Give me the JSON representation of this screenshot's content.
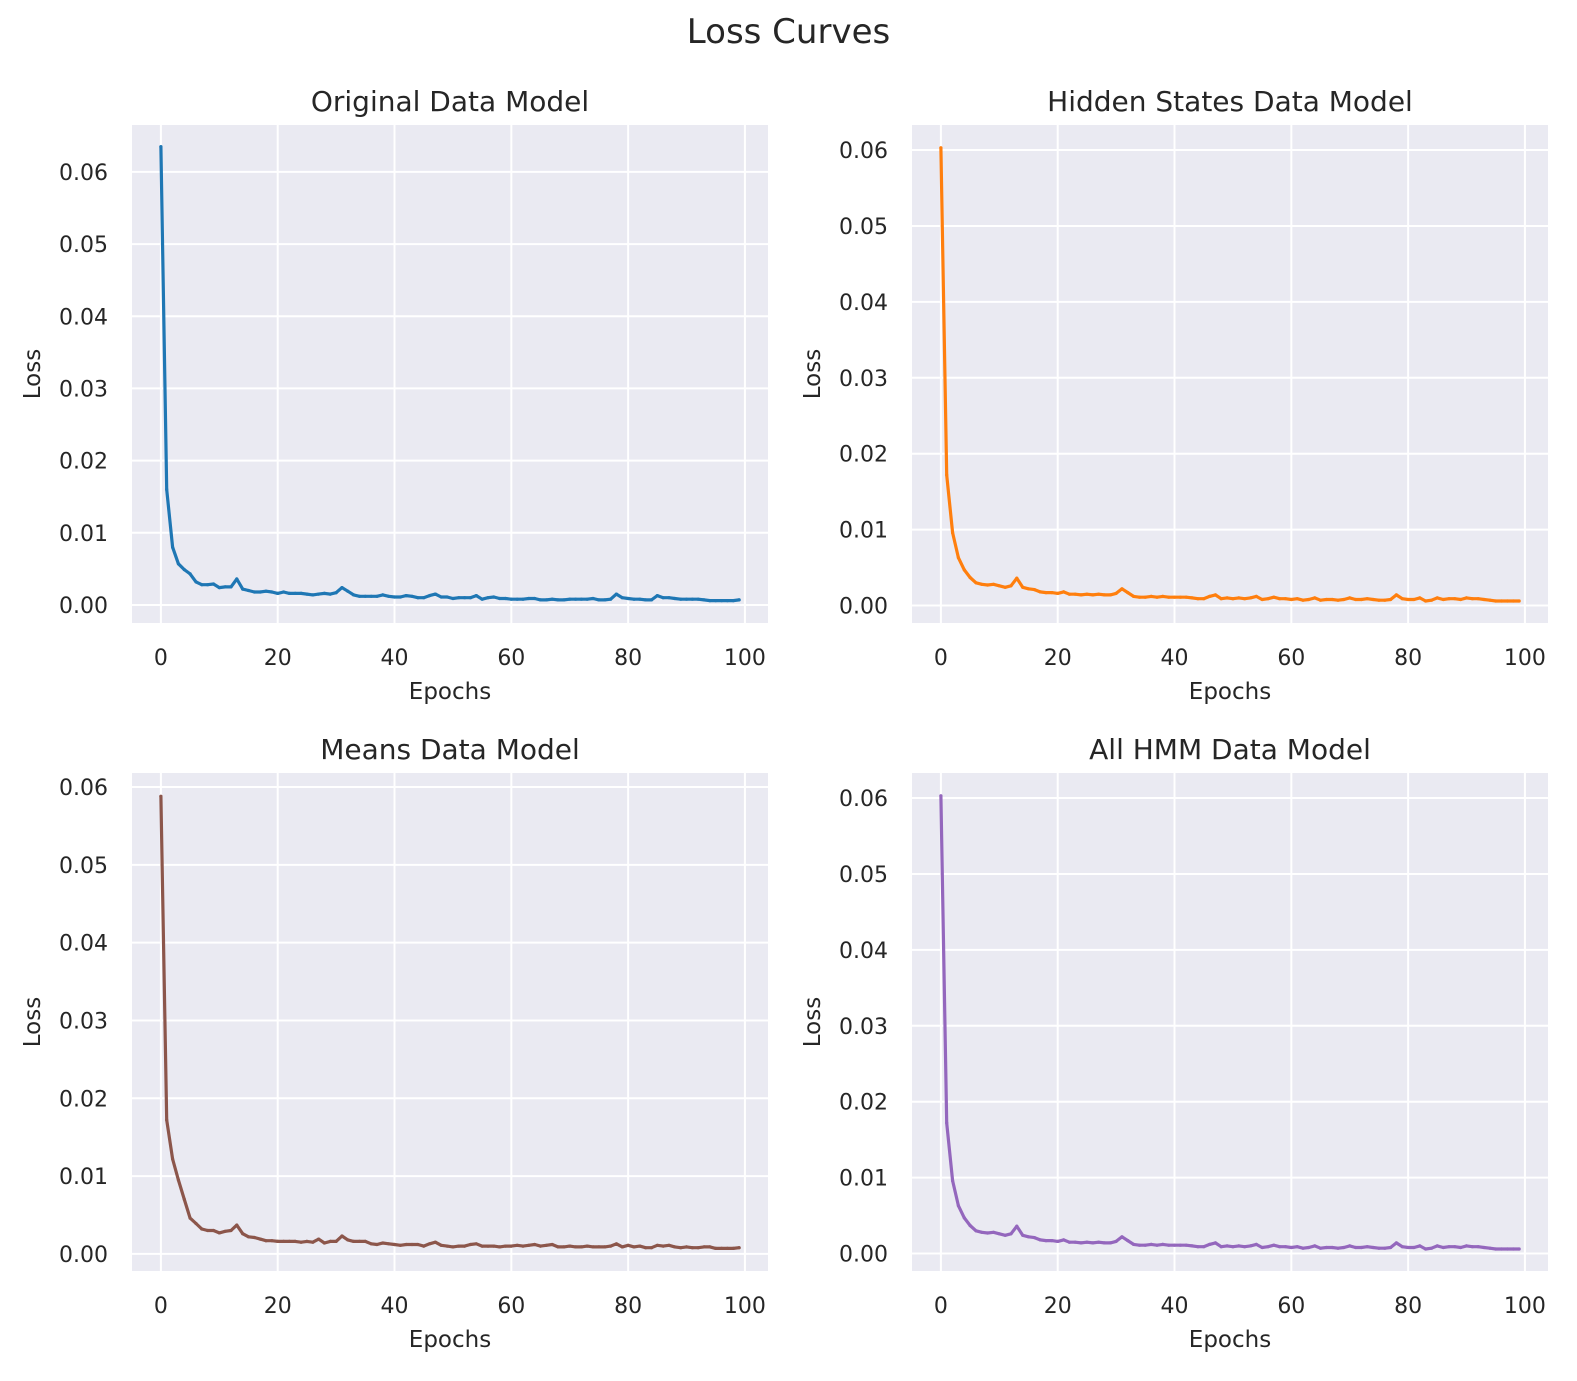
{
  "figure": {
    "title": "Loss Curves"
  },
  "colors": {
    "axes_bg": "#eaeaf2",
    "grid": "#ffffff",
    "text": "#262626",
    "series": [
      "#1f77b4",
      "#ff7f0e",
      "#8c564b",
      "#9467bd"
    ]
  },
  "chart_data": [
    {
      "type": "line",
      "title": "Original Data Model",
      "xlabel": "Epochs",
      "ylabel": "Loss",
      "xlim": [
        -4.95,
        103.95
      ],
      "ylim": [
        -0.0025,
        0.0665
      ],
      "xticks": [
        0,
        20,
        40,
        60,
        80,
        100
      ],
      "xtick_labels": [
        "0",
        "20",
        "40",
        "60",
        "80",
        "100"
      ],
      "yticks": [
        0.0,
        0.01,
        0.02,
        0.03,
        0.04,
        0.05,
        0.06
      ],
      "ytick_labels": [
        "0.00",
        "0.01",
        "0.02",
        "0.03",
        "0.04",
        "0.05",
        "0.06"
      ],
      "grid": true,
      "color": "#1f77b4",
      "x": [
        0,
        1,
        2,
        3,
        4,
        5,
        6,
        7,
        8,
        9,
        10,
        11,
        12,
        13,
        14,
        15,
        16,
        17,
        18,
        19,
        20,
        21,
        22,
        23,
        24,
        25,
        26,
        27,
        28,
        29,
        30,
        31,
        32,
        33,
        34,
        35,
        36,
        37,
        38,
        39,
        40,
        41,
        42,
        43,
        44,
        45,
        46,
        47,
        48,
        49,
        50,
        51,
        52,
        53,
        54,
        55,
        56,
        57,
        58,
        59,
        60,
        61,
        62,
        63,
        64,
        65,
        66,
        67,
        68,
        69,
        70,
        71,
        72,
        73,
        74,
        75,
        76,
        77,
        78,
        79,
        80,
        81,
        82,
        83,
        84,
        85,
        86,
        87,
        88,
        89,
        90,
        91,
        92,
        93,
        94,
        95,
        96,
        97,
        98,
        99
      ],
      "values": [
        0.0635,
        0.016,
        0.008,
        0.0057,
        0.0049,
        0.0043,
        0.0032,
        0.0028,
        0.0028,
        0.0029,
        0.0024,
        0.0025,
        0.0025,
        0.0036,
        0.0022,
        0.002,
        0.0018,
        0.0018,
        0.0019,
        0.0018,
        0.0016,
        0.0018,
        0.0016,
        0.0016,
        0.0016,
        0.0015,
        0.0014,
        0.0015,
        0.0016,
        0.0015,
        0.0017,
        0.0024,
        0.0019,
        0.0014,
        0.0012,
        0.0012,
        0.0012,
        0.0012,
        0.0014,
        0.0012,
        0.0011,
        0.0011,
        0.0013,
        0.0012,
        0.001,
        0.001,
        0.0013,
        0.0015,
        0.0011,
        0.0011,
        0.0009,
        0.001,
        0.001,
        0.001,
        0.0013,
        0.0008,
        0.001,
        0.0011,
        0.0009,
        0.0009,
        0.0008,
        0.0008,
        0.0008,
        0.0009,
        0.0009,
        0.0007,
        0.0007,
        0.0008,
        0.0007,
        0.0007,
        0.0008,
        0.0008,
        0.0008,
        0.0008,
        0.0009,
        0.0007,
        0.0007,
        0.0008,
        0.0015,
        0.001,
        0.0009,
        0.0008,
        0.0008,
        0.0007,
        0.0007,
        0.0013,
        0.001,
        0.001,
        0.0009,
        0.0008,
        0.0008,
        0.0008,
        0.0008,
        0.0007,
        0.0006,
        0.0006,
        0.0006,
        0.0006,
        0.0006,
        0.0007
      ]
    },
    {
      "type": "line",
      "title": "Hidden States Data Model",
      "xlabel": "Epochs",
      "ylabel": "Loss",
      "xlim": [
        -4.95,
        103.95
      ],
      "ylim": [
        -0.0023,
        0.0633
      ],
      "xticks": [
        0,
        20,
        40,
        60,
        80,
        100
      ],
      "xtick_labels": [
        "0",
        "20",
        "40",
        "60",
        "80",
        "100"
      ],
      "yticks": [
        0.0,
        0.01,
        0.02,
        0.03,
        0.04,
        0.05,
        0.06
      ],
      "ytick_labels": [
        "0.00",
        "0.01",
        "0.02",
        "0.03",
        "0.04",
        "0.05",
        "0.06"
      ],
      "grid": true,
      "color": "#ff7f0e",
      "x": [
        0,
        1,
        2,
        3,
        4,
        5,
        6,
        7,
        8,
        9,
        10,
        11,
        12,
        13,
        14,
        15,
        16,
        17,
        18,
        19,
        20,
        21,
        22,
        23,
        24,
        25,
        26,
        27,
        28,
        29,
        30,
        31,
        32,
        33,
        34,
        35,
        36,
        37,
        38,
        39,
        40,
        41,
        42,
        43,
        44,
        45,
        46,
        47,
        48,
        49,
        50,
        51,
        52,
        53,
        54,
        55,
        56,
        57,
        58,
        59,
        60,
        61,
        62,
        63,
        64,
        65,
        66,
        67,
        68,
        69,
        70,
        71,
        72,
        73,
        74,
        75,
        76,
        77,
        78,
        79,
        80,
        81,
        82,
        83,
        84,
        85,
        86,
        87,
        88,
        89,
        90,
        91,
        92,
        93,
        94,
        95,
        96,
        97,
        98,
        99
      ],
      "values": [
        0.0603,
        0.0172,
        0.0096,
        0.0063,
        0.0047,
        0.0037,
        0.003,
        0.0028,
        0.0027,
        0.0028,
        0.0026,
        0.0024,
        0.0026,
        0.0036,
        0.0024,
        0.0022,
        0.0021,
        0.0018,
        0.0017,
        0.0017,
        0.0016,
        0.0018,
        0.0015,
        0.0015,
        0.0014,
        0.0015,
        0.0014,
        0.0015,
        0.0014,
        0.0014,
        0.0016,
        0.0022,
        0.0017,
        0.0012,
        0.0011,
        0.0011,
        0.0012,
        0.0011,
        0.0012,
        0.0011,
        0.0011,
        0.0011,
        0.0011,
        0.001,
        0.0009,
        0.0009,
        0.0012,
        0.0014,
        0.0009,
        0.001,
        0.0009,
        0.001,
        0.0009,
        0.001,
        0.0012,
        0.0008,
        0.0009,
        0.0011,
        0.0009,
        0.0009,
        0.0008,
        0.0009,
        0.0007,
        0.0008,
        0.001,
        0.0007,
        0.0008,
        0.0008,
        0.0007,
        0.0008,
        0.001,
        0.0008,
        0.0008,
        0.0009,
        0.0008,
        0.0007,
        0.0007,
        0.0008,
        0.0014,
        0.0009,
        0.0008,
        0.0008,
        0.001,
        0.0006,
        0.0007,
        0.001,
        0.0008,
        0.0009,
        0.0009,
        0.0008,
        0.001,
        0.0009,
        0.0009,
        0.0008,
        0.0007,
        0.0006,
        0.0006,
        0.0006,
        0.0006,
        0.0006
      ]
    },
    {
      "type": "line",
      "title": "Means Data Model",
      "xlabel": "Epochs",
      "ylabel": "Loss",
      "xlim": [
        -4.95,
        103.95
      ],
      "ylim": [
        -0.0022,
        0.0618
      ],
      "xticks": [
        0,
        20,
        40,
        60,
        80,
        100
      ],
      "xtick_labels": [
        "0",
        "20",
        "40",
        "60",
        "80",
        "100"
      ],
      "yticks": [
        0.0,
        0.01,
        0.02,
        0.03,
        0.04,
        0.05,
        0.06
      ],
      "ytick_labels": [
        "0.00",
        "0.01",
        "0.02",
        "0.03",
        "0.04",
        "0.05",
        "0.06"
      ],
      "grid": true,
      "color": "#8c564b",
      "x": [
        0,
        1,
        2,
        3,
        4,
        5,
        6,
        7,
        8,
        9,
        10,
        11,
        12,
        13,
        14,
        15,
        16,
        17,
        18,
        19,
        20,
        21,
        22,
        23,
        24,
        25,
        26,
        27,
        28,
        29,
        30,
        31,
        32,
        33,
        34,
        35,
        36,
        37,
        38,
        39,
        40,
        41,
        42,
        43,
        44,
        45,
        46,
        47,
        48,
        49,
        50,
        51,
        52,
        53,
        54,
        55,
        56,
        57,
        58,
        59,
        60,
        61,
        62,
        63,
        64,
        65,
        66,
        67,
        68,
        69,
        70,
        71,
        72,
        73,
        74,
        75,
        76,
        77,
        78,
        79,
        80,
        81,
        82,
        83,
        84,
        85,
        86,
        87,
        88,
        89,
        90,
        91,
        92,
        93,
        94,
        95,
        96,
        97,
        98,
        99
      ],
      "values": [
        0.0588,
        0.0172,
        0.0122,
        0.0095,
        0.007,
        0.0046,
        0.0039,
        0.0032,
        0.003,
        0.003,
        0.0027,
        0.0029,
        0.003,
        0.0037,
        0.0026,
        0.0022,
        0.0021,
        0.0019,
        0.0017,
        0.0017,
        0.0016,
        0.0016,
        0.0016,
        0.0016,
        0.0015,
        0.0016,
        0.0015,
        0.0019,
        0.0014,
        0.0016,
        0.0016,
        0.0023,
        0.0018,
        0.0016,
        0.0016,
        0.0016,
        0.0013,
        0.0012,
        0.0014,
        0.0013,
        0.0012,
        0.0011,
        0.0012,
        0.0012,
        0.0012,
        0.001,
        0.0013,
        0.0015,
        0.0011,
        0.001,
        0.0009,
        0.001,
        0.001,
        0.0012,
        0.0013,
        0.001,
        0.001,
        0.001,
        0.0009,
        0.001,
        0.001,
        0.0011,
        0.001,
        0.0011,
        0.0012,
        0.001,
        0.0011,
        0.0012,
        0.0009,
        0.0009,
        0.001,
        0.0009,
        0.0009,
        0.001,
        0.0009,
        0.0009,
        0.0009,
        0.001,
        0.0013,
        0.0009,
        0.0011,
        0.0009,
        0.001,
        0.0008,
        0.0008,
        0.0011,
        0.001,
        0.0011,
        0.0009,
        0.0008,
        0.0009,
        0.0008,
        0.0008,
        0.0009,
        0.0009,
        0.0007,
        0.0007,
        0.0007,
        0.0007,
        0.0008
      ]
    },
    {
      "type": "line",
      "title": "All HMM Data Model",
      "xlabel": "Epochs",
      "ylabel": "Loss",
      "xlim": [
        -4.95,
        103.95
      ],
      "ylim": [
        -0.0023,
        0.0633
      ],
      "xticks": [
        0,
        20,
        40,
        60,
        80,
        100
      ],
      "xtick_labels": [
        "0",
        "20",
        "40",
        "60",
        "80",
        "100"
      ],
      "yticks": [
        0.0,
        0.01,
        0.02,
        0.03,
        0.04,
        0.05,
        0.06
      ],
      "ytick_labels": [
        "0.00",
        "0.01",
        "0.02",
        "0.03",
        "0.04",
        "0.05",
        "0.06"
      ],
      "grid": true,
      "color": "#9467bd",
      "x": [
        0,
        1,
        2,
        3,
        4,
        5,
        6,
        7,
        8,
        9,
        10,
        11,
        12,
        13,
        14,
        15,
        16,
        17,
        18,
        19,
        20,
        21,
        22,
        23,
        24,
        25,
        26,
        27,
        28,
        29,
        30,
        31,
        32,
        33,
        34,
        35,
        36,
        37,
        38,
        39,
        40,
        41,
        42,
        43,
        44,
        45,
        46,
        47,
        48,
        49,
        50,
        51,
        52,
        53,
        54,
        55,
        56,
        57,
        58,
        59,
        60,
        61,
        62,
        63,
        64,
        65,
        66,
        67,
        68,
        69,
        70,
        71,
        72,
        73,
        74,
        75,
        76,
        77,
        78,
        79,
        80,
        81,
        82,
        83,
        84,
        85,
        86,
        87,
        88,
        89,
        90,
        91,
        92,
        93,
        94,
        95,
        96,
        97,
        98,
        99
      ],
      "values": [
        0.0603,
        0.0172,
        0.0096,
        0.0063,
        0.0047,
        0.0037,
        0.003,
        0.0028,
        0.0027,
        0.0028,
        0.0026,
        0.0024,
        0.0026,
        0.0036,
        0.0024,
        0.0022,
        0.0021,
        0.0018,
        0.0017,
        0.0017,
        0.0016,
        0.0018,
        0.0015,
        0.0015,
        0.0014,
        0.0015,
        0.0014,
        0.0015,
        0.0014,
        0.0014,
        0.0016,
        0.0022,
        0.0017,
        0.0012,
        0.0011,
        0.0011,
        0.0012,
        0.0011,
        0.0012,
        0.0011,
        0.0011,
        0.0011,
        0.0011,
        0.001,
        0.0009,
        0.0009,
        0.0012,
        0.0014,
        0.0009,
        0.001,
        0.0009,
        0.001,
        0.0009,
        0.001,
        0.0012,
        0.0008,
        0.0009,
        0.0011,
        0.0009,
        0.0009,
        0.0008,
        0.0009,
        0.0007,
        0.0008,
        0.001,
        0.0007,
        0.0008,
        0.0008,
        0.0007,
        0.0008,
        0.001,
        0.0008,
        0.0008,
        0.0009,
        0.0008,
        0.0007,
        0.0007,
        0.0008,
        0.0014,
        0.0009,
        0.0008,
        0.0008,
        0.001,
        0.0006,
        0.0007,
        0.001,
        0.0008,
        0.0009,
        0.0009,
        0.0008,
        0.001,
        0.0009,
        0.0009,
        0.0008,
        0.0007,
        0.0006,
        0.0006,
        0.0006,
        0.0006,
        0.0006
      ]
    }
  ]
}
